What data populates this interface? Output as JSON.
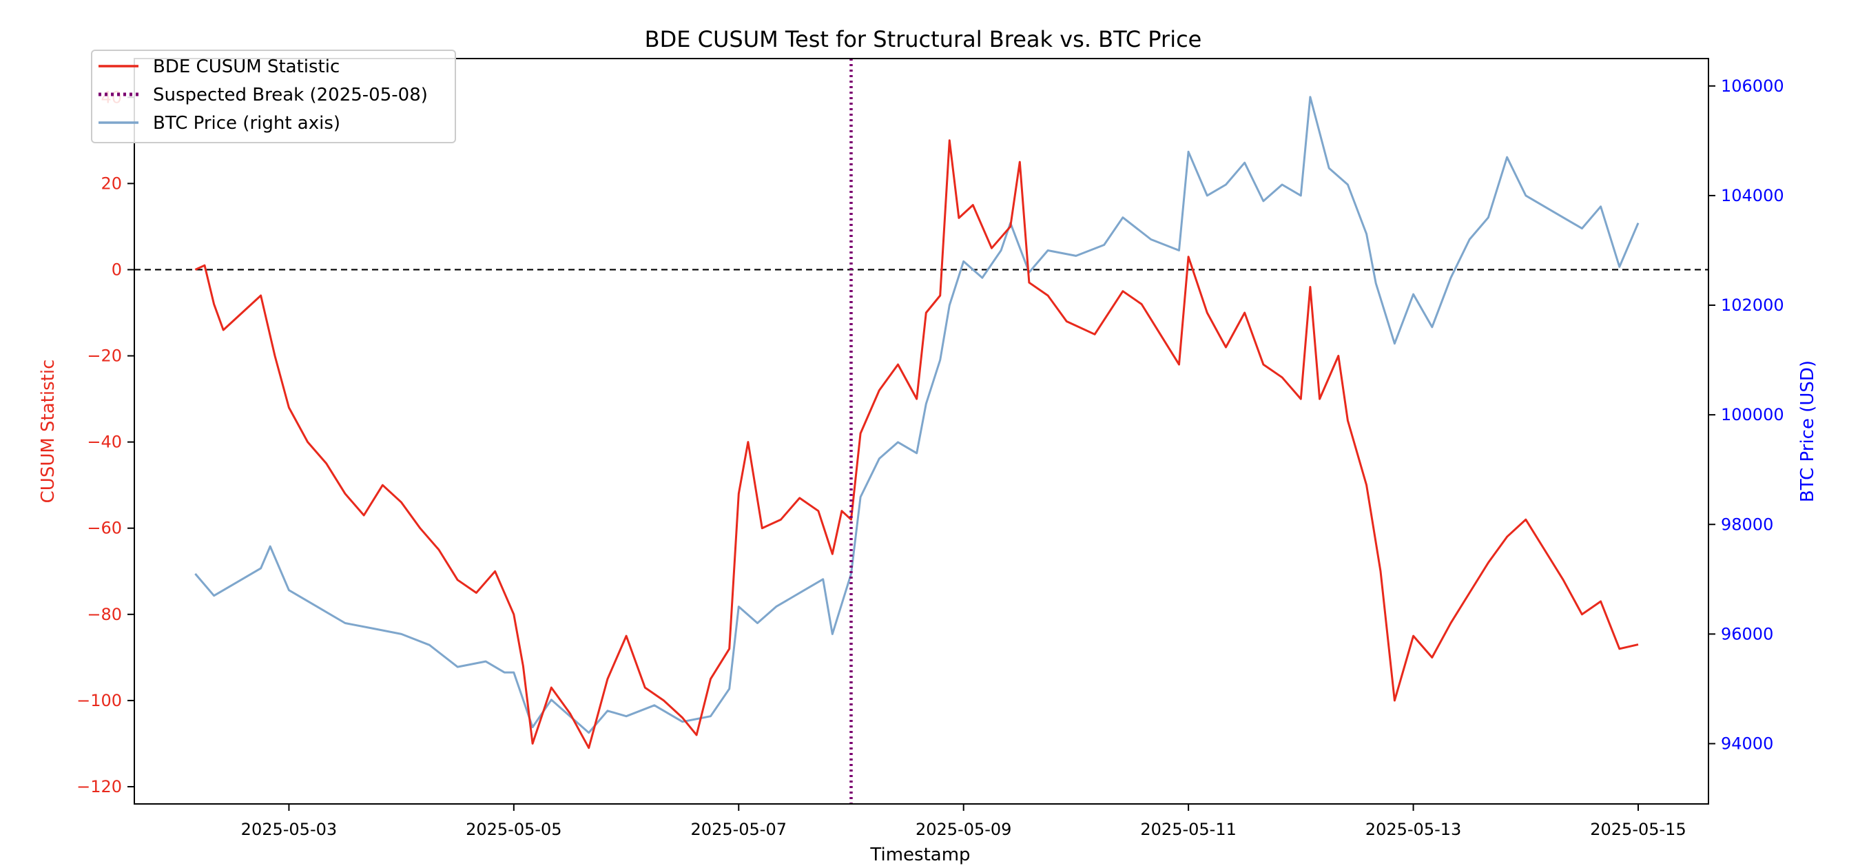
{
  "chart_data": {
    "type": "line",
    "title": "BDE CUSUM Test for Structural Break vs. BTC Price",
    "xlabel": "Timestamp",
    "ylabel_left": "CUSUM Statistic",
    "ylabel_right": "BTC Price (USD)",
    "x_ticks": [
      "2025-05-03",
      "2025-05-05",
      "2025-05-07",
      "2025-05-09",
      "2025-05-11",
      "2025-05-13",
      "2025-05-15"
    ],
    "y_left_ticks": [
      "40",
      "20",
      "0",
      "−20",
      "−40",
      "−60",
      "−80",
      "−100",
      "−120"
    ],
    "y_right_ticks": [
      "106000",
      "104000",
      "102000",
      "100000",
      "98000",
      "96000",
      "94000"
    ],
    "xlim": [
      "2025-05-01T15:00",
      "2025-05-15T15:00"
    ],
    "ylim_left": [
      -124,
      49
    ],
    "ylim_right": [
      92900,
      106500
    ],
    "grid": false,
    "legend_position": "upper-left",
    "reference_line": {
      "y": 0,
      "style": "dashed",
      "color": "#000000"
    },
    "break_line": {
      "x": "2025-05-08",
      "style": "dotted",
      "color": "#7b006f"
    },
    "legend": [
      {
        "label": "BDE CUSUM Statistic",
        "color": "#e8291c",
        "style": "solid"
      },
      {
        "label": "Suspected Break (2025-05-08)",
        "color": "#7b006f",
        "style": "dotted"
      },
      {
        "label": "BTC Price (right axis)",
        "color": "#7ea6cc",
        "style": "solid"
      }
    ],
    "series": [
      {
        "name": "BDE CUSUM Statistic",
        "axis": "left",
        "color": "#e8291c",
        "points": [
          [
            "2025-05-02T04:00",
            0
          ],
          [
            "2025-05-02T06:00",
            1
          ],
          [
            "2025-05-02T08:00",
            -8
          ],
          [
            "2025-05-02T10:00",
            -14
          ],
          [
            "2025-05-02T14:00",
            -10
          ],
          [
            "2025-05-02T18:00",
            -6
          ],
          [
            "2025-05-02T21:00",
            -20
          ],
          [
            "2025-05-03T00:00",
            -32
          ],
          [
            "2025-05-03T04:00",
            -40
          ],
          [
            "2025-05-03T08:00",
            -45
          ],
          [
            "2025-05-03T12:00",
            -52
          ],
          [
            "2025-05-03T16:00",
            -57
          ],
          [
            "2025-05-03T20:00",
            -50
          ],
          [
            "2025-05-04T00:00",
            -54
          ],
          [
            "2025-05-04T04:00",
            -60
          ],
          [
            "2025-05-04T08:00",
            -65
          ],
          [
            "2025-05-04T12:00",
            -72
          ],
          [
            "2025-05-04T16:00",
            -75
          ],
          [
            "2025-05-04T20:00",
            -70
          ],
          [
            "2025-05-05T00:00",
            -80
          ],
          [
            "2025-05-05T02:00",
            -92
          ],
          [
            "2025-05-05T04:00",
            -110
          ],
          [
            "2025-05-05T08:00",
            -97
          ],
          [
            "2025-05-05T12:00",
            -103
          ],
          [
            "2025-05-05T16:00",
            -111
          ],
          [
            "2025-05-05T20:00",
            -95
          ],
          [
            "2025-05-06T00:00",
            -85
          ],
          [
            "2025-05-06T04:00",
            -97
          ],
          [
            "2025-05-06T08:00",
            -100
          ],
          [
            "2025-05-06T12:00",
            -104
          ],
          [
            "2025-05-06T15:00",
            -108
          ],
          [
            "2025-05-06T18:00",
            -95
          ],
          [
            "2025-05-06T22:00",
            -88
          ],
          [
            "2025-05-07T00:00",
            -52
          ],
          [
            "2025-05-07T02:00",
            -40
          ],
          [
            "2025-05-07T05:00",
            -60
          ],
          [
            "2025-05-07T09:00",
            -58
          ],
          [
            "2025-05-07T13:00",
            -53
          ],
          [
            "2025-05-07T17:00",
            -56
          ],
          [
            "2025-05-07T20:00",
            -66
          ],
          [
            "2025-05-07T22:00",
            -56
          ],
          [
            "2025-05-08T00:00",
            -58
          ],
          [
            "2025-05-08T02:00",
            -38
          ],
          [
            "2025-05-08T06:00",
            -28
          ],
          [
            "2025-05-08T10:00",
            -22
          ],
          [
            "2025-05-08T14:00",
            -30
          ],
          [
            "2025-05-08T16:00",
            -10
          ],
          [
            "2025-05-08T19:00",
            -6
          ],
          [
            "2025-05-08T21:00",
            30
          ],
          [
            "2025-05-08T23:00",
            12
          ],
          [
            "2025-05-09T02:00",
            15
          ],
          [
            "2025-05-09T06:00",
            5
          ],
          [
            "2025-05-09T10:00",
            10
          ],
          [
            "2025-05-09T12:00",
            25
          ],
          [
            "2025-05-09T14:00",
            -3
          ],
          [
            "2025-05-09T18:00",
            -6
          ],
          [
            "2025-05-09T22:00",
            -12
          ],
          [
            "2025-05-10T04:00",
            -15
          ],
          [
            "2025-05-10T10:00",
            -5
          ],
          [
            "2025-05-10T14:00",
            -8
          ],
          [
            "2025-05-10T18:00",
            -15
          ],
          [
            "2025-05-10T22:00",
            -22
          ],
          [
            "2025-05-11T00:00",
            3
          ],
          [
            "2025-05-11T04:00",
            -10
          ],
          [
            "2025-05-11T08:00",
            -18
          ],
          [
            "2025-05-11T12:00",
            -10
          ],
          [
            "2025-05-11T16:00",
            -22
          ],
          [
            "2025-05-11T20:00",
            -25
          ],
          [
            "2025-05-12T00:00",
            -30
          ],
          [
            "2025-05-12T02:00",
            -4
          ],
          [
            "2025-05-12T04:00",
            -30
          ],
          [
            "2025-05-12T08:00",
            -20
          ],
          [
            "2025-05-12T10:00",
            -35
          ],
          [
            "2025-05-12T14:00",
            -50
          ],
          [
            "2025-05-12T17:00",
            -70
          ],
          [
            "2025-05-12T20:00",
            -100
          ],
          [
            "2025-05-13T00:00",
            -85
          ],
          [
            "2025-05-13T04:00",
            -90
          ],
          [
            "2025-05-13T08:00",
            -82
          ],
          [
            "2025-05-13T12:00",
            -75
          ],
          [
            "2025-05-13T16:00",
            -68
          ],
          [
            "2025-05-13T20:00",
            -62
          ],
          [
            "2025-05-14T00:00",
            -58
          ],
          [
            "2025-05-14T04:00",
            -65
          ],
          [
            "2025-05-14T08:00",
            -72
          ],
          [
            "2025-05-14T12:00",
            -80
          ],
          [
            "2025-05-14T16:00",
            -77
          ],
          [
            "2025-05-14T20:00",
            -88
          ],
          [
            "2025-05-15T00:00",
            -87
          ]
        ]
      },
      {
        "name": "BTC Price (right axis)",
        "axis": "right",
        "color": "#7ea6cc",
        "points": [
          [
            "2025-05-02T04:00",
            97100
          ],
          [
            "2025-05-02T08:00",
            96700
          ],
          [
            "2025-05-02T12:00",
            96900
          ],
          [
            "2025-05-02T18:00",
            97200
          ],
          [
            "2025-05-02T20:00",
            97600
          ],
          [
            "2025-05-03T00:00",
            96800
          ],
          [
            "2025-05-03T06:00",
            96500
          ],
          [
            "2025-05-03T12:00",
            96200
          ],
          [
            "2025-05-03T18:00",
            96100
          ],
          [
            "2025-05-04T00:00",
            96000
          ],
          [
            "2025-05-04T06:00",
            95800
          ],
          [
            "2025-05-04T12:00",
            95400
          ],
          [
            "2025-05-04T18:00",
            95500
          ],
          [
            "2025-05-04T22:00",
            95300
          ],
          [
            "2025-05-05T00:00",
            95300
          ],
          [
            "2025-05-05T04:00",
            94300
          ],
          [
            "2025-05-05T08:00",
            94800
          ],
          [
            "2025-05-05T12:00",
            94500
          ],
          [
            "2025-05-05T16:00",
            94200
          ],
          [
            "2025-05-05T20:00",
            94600
          ],
          [
            "2025-05-06T00:00",
            94500
          ],
          [
            "2025-05-06T06:00",
            94700
          ],
          [
            "2025-05-06T12:00",
            94400
          ],
          [
            "2025-05-06T18:00",
            94500
          ],
          [
            "2025-05-06T22:00",
            95000
          ],
          [
            "2025-05-07T00:00",
            96500
          ],
          [
            "2025-05-07T04:00",
            96200
          ],
          [
            "2025-05-07T08:00",
            96500
          ],
          [
            "2025-05-07T14:00",
            96800
          ],
          [
            "2025-05-07T18:00",
            97000
          ],
          [
            "2025-05-07T20:00",
            96000
          ],
          [
            "2025-05-08T00:00",
            97100
          ],
          [
            "2025-05-08T02:00",
            98500
          ],
          [
            "2025-05-08T06:00",
            99200
          ],
          [
            "2025-05-08T10:00",
            99500
          ],
          [
            "2025-05-08T14:00",
            99300
          ],
          [
            "2025-05-08T16:00",
            100200
          ],
          [
            "2025-05-08T19:00",
            101000
          ],
          [
            "2025-05-08T21:00",
            102000
          ],
          [
            "2025-05-09T00:00",
            102800
          ],
          [
            "2025-05-09T04:00",
            102500
          ],
          [
            "2025-05-09T08:00",
            103000
          ],
          [
            "2025-05-09T10:00",
            103500
          ],
          [
            "2025-05-09T14:00",
            102600
          ],
          [
            "2025-05-09T18:00",
            103000
          ],
          [
            "2025-05-10T00:00",
            102900
          ],
          [
            "2025-05-10T06:00",
            103100
          ],
          [
            "2025-05-10T10:00",
            103600
          ],
          [
            "2025-05-10T16:00",
            103200
          ],
          [
            "2025-05-10T22:00",
            103000
          ],
          [
            "2025-05-11T00:00",
            104800
          ],
          [
            "2025-05-11T04:00",
            104000
          ],
          [
            "2025-05-11T08:00",
            104200
          ],
          [
            "2025-05-11T12:00",
            104600
          ],
          [
            "2025-05-11T16:00",
            103900
          ],
          [
            "2025-05-11T20:00",
            104200
          ],
          [
            "2025-05-12T00:00",
            104000
          ],
          [
            "2025-05-12T02:00",
            105800
          ],
          [
            "2025-05-12T06:00",
            104500
          ],
          [
            "2025-05-12T10:00",
            104200
          ],
          [
            "2025-05-12T14:00",
            103300
          ],
          [
            "2025-05-12T16:00",
            102400
          ],
          [
            "2025-05-12T20:00",
            101300
          ],
          [
            "2025-05-13T00:00",
            102200
          ],
          [
            "2025-05-13T04:00",
            101600
          ],
          [
            "2025-05-13T08:00",
            102500
          ],
          [
            "2025-05-13T12:00",
            103200
          ],
          [
            "2025-05-13T16:00",
            103600
          ],
          [
            "2025-05-13T20:00",
            104700
          ],
          [
            "2025-05-14T00:00",
            104000
          ],
          [
            "2025-05-14T06:00",
            103700
          ],
          [
            "2025-05-14T12:00",
            103400
          ],
          [
            "2025-05-14T16:00",
            103800
          ],
          [
            "2025-05-14T20:00",
            102700
          ],
          [
            "2025-05-15T00:00",
            103500
          ]
        ]
      }
    ]
  }
}
